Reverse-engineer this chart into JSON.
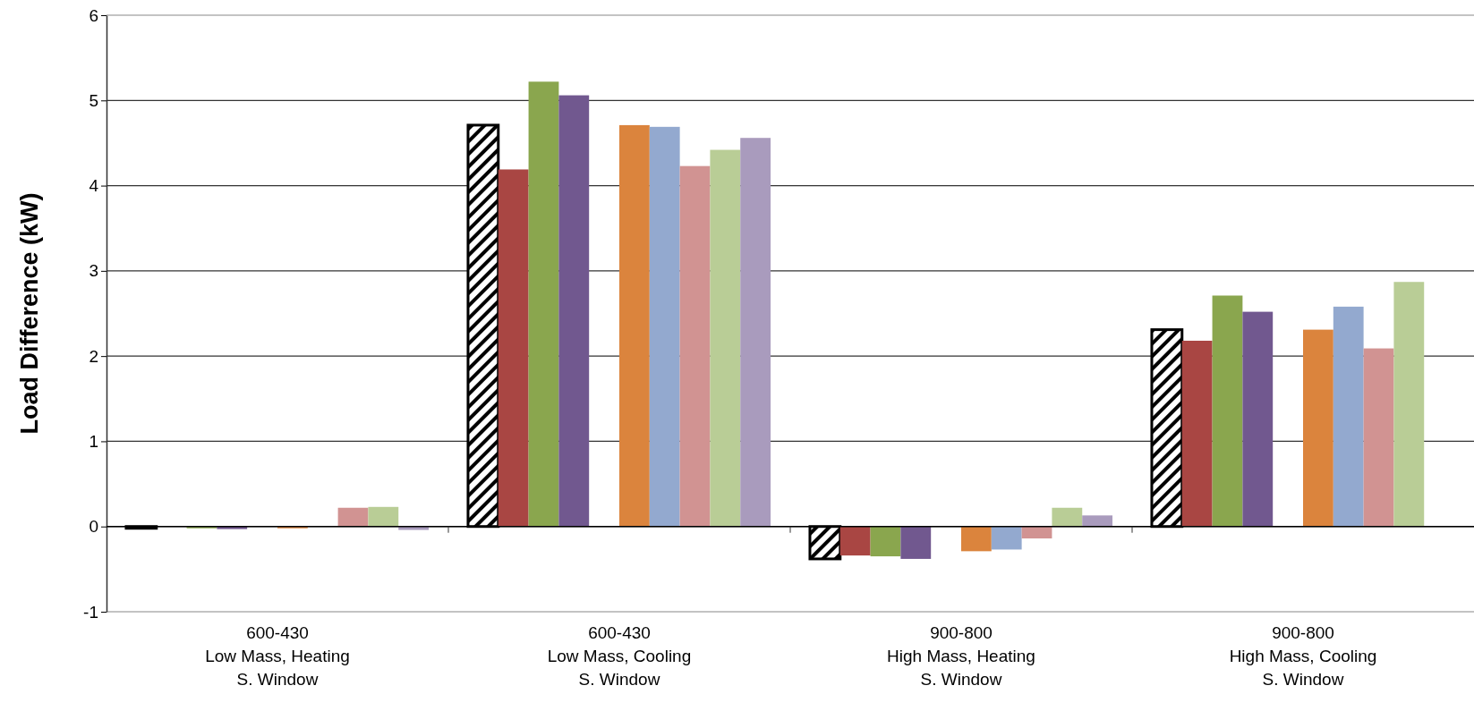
{
  "chart_data": {
    "type": "bar",
    "ylabel": "Load Difference (kW)",
    "categories": [
      "600-430\nLow Mass, Heating\nS. Window",
      "600-430\nLow Mass, Cooling\nS. Window",
      "900-800\nHigh Mass, Heating\nS. Window",
      "900-800\nHigh Mass, Cooling\nS. Window"
    ],
    "series": [
      {
        "color": "#000000",
        "values": [
          0,
          4.71,
          -0.38,
          2.31
        ]
      },
      {
        "color": "#a94643",
        "values": [
          null,
          4.19,
          -0.34,
          2.18
        ]
      },
      {
        "color": "#8aa64e",
        "values": [
          0,
          5.22,
          -0.35,
          2.71
        ]
      },
      {
        "color": "#71588f",
        "values": [
          -0.03,
          5.06,
          -0.38,
          2.52
        ]
      },
      {
        "values": [
          null,
          null,
          null,
          null
        ]
      },
      {
        "color": "#db843d",
        "values": [
          0,
          4.71,
          -0.29,
          2.31
        ]
      },
      {
        "color": "#93a9cf",
        "values": [
          null,
          4.69,
          -0.27,
          2.58
        ]
      },
      {
        "color": "#d19392",
        "values": [
          0.22,
          4.23,
          -0.14,
          2.09
        ]
      },
      {
        "color": "#b9cd96",
        "values": [
          0.23,
          4.42,
          0.22,
          2.87
        ]
      },
      {
        "color": "#a99bbd",
        "values": [
          -0.04,
          4.56,
          0.13,
          null
        ]
      }
    ],
    "ylim": [
      -1,
      6
    ],
    "yticks": [
      -1,
      0,
      1,
      2,
      3,
      4,
      5,
      6
    ],
    "grid": "y"
  }
}
